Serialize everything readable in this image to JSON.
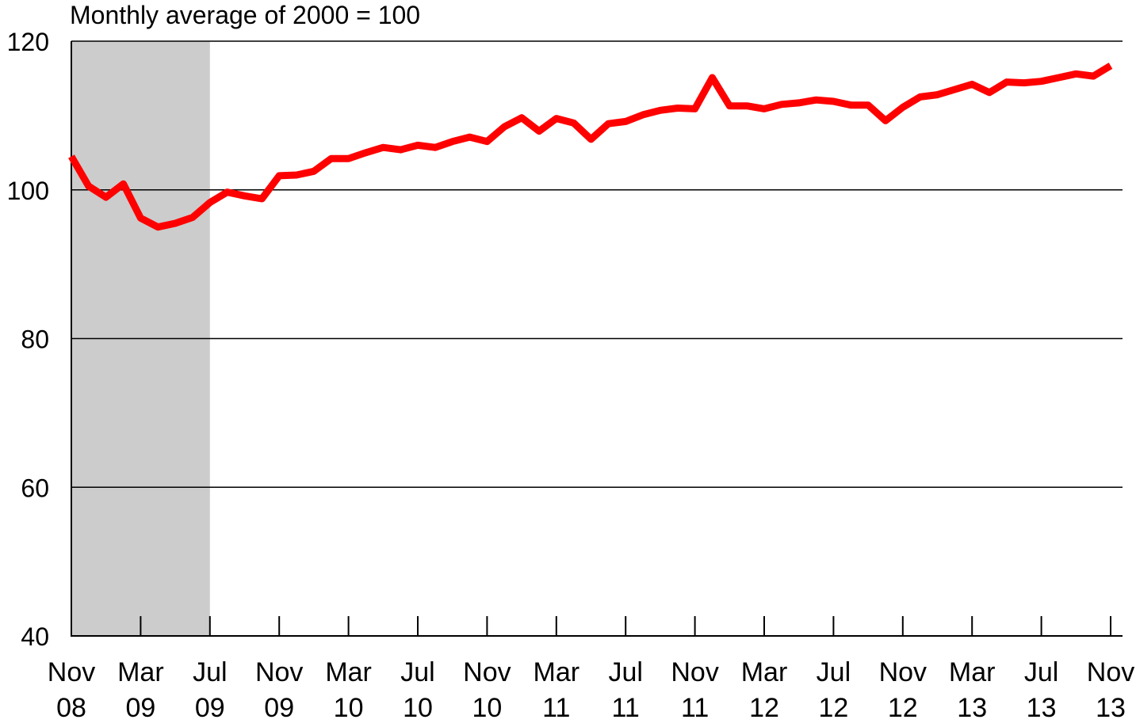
{
  "chart_data": {
    "type": "line",
    "title": "",
    "ylabel": "Monthly average of 2000 = 100",
    "xlabel": "",
    "ylim": [
      40,
      120
    ],
    "yticks": [
      40,
      60,
      80,
      100,
      120
    ],
    "grid": true,
    "shaded_region": {
      "from": "Nov 08",
      "to": "Jul 09",
      "color": "#cccccc"
    },
    "line_color": "#ff0000",
    "x_tick_labels": [
      {
        "top": "Nov",
        "bottom": "08",
        "index": 0
      },
      {
        "top": "Mar",
        "bottom": "09",
        "index": 4
      },
      {
        "top": "Jul",
        "bottom": "09",
        "index": 8
      },
      {
        "top": "Nov",
        "bottom": "09",
        "index": 12
      },
      {
        "top": "Mar",
        "bottom": "10",
        "index": 16
      },
      {
        "top": "Jul",
        "bottom": "10",
        "index": 20
      },
      {
        "top": "Nov",
        "bottom": "10",
        "index": 24
      },
      {
        "top": "Mar",
        "bottom": "11",
        "index": 28
      },
      {
        "top": "Jul",
        "bottom": "11",
        "index": 32
      },
      {
        "top": "Nov",
        "bottom": "11",
        "index": 36
      },
      {
        "top": "Mar",
        "bottom": "12",
        "index": 40
      },
      {
        "top": "Jul",
        "bottom": "12",
        "index": 44
      },
      {
        "top": "Nov",
        "bottom": "12",
        "index": 48
      },
      {
        "top": "Mar",
        "bottom": "13",
        "index": 52
      },
      {
        "top": "Jul",
        "bottom": "13",
        "index": 56
      },
      {
        "top": "Nov",
        "bottom": "13",
        "index": 60
      }
    ],
    "series": [
      {
        "values": [
          104.5,
          100.5,
          99.0,
          100.8,
          96.2,
          95.0,
          95.5,
          96.3,
          98.3,
          99.7,
          99.2,
          98.8,
          101.9,
          102.0,
          102.5,
          104.2,
          104.2,
          105.0,
          105.7,
          105.4,
          106.0,
          105.7,
          106.5,
          107.1,
          106.5,
          108.5,
          109.7,
          107.9,
          109.6,
          109.0,
          106.8,
          108.9,
          109.2,
          110.1,
          110.7,
          111.0,
          110.9,
          115.1,
          111.3,
          111.3,
          110.9,
          111.5,
          111.7,
          112.1,
          111.9,
          111.4,
          111.4,
          109.3,
          111.1,
          112.5,
          112.8,
          113.5,
          114.2,
          113.1,
          114.5,
          114.4,
          114.6,
          115.1,
          115.6,
          115.3,
          116.7
        ]
      }
    ]
  }
}
